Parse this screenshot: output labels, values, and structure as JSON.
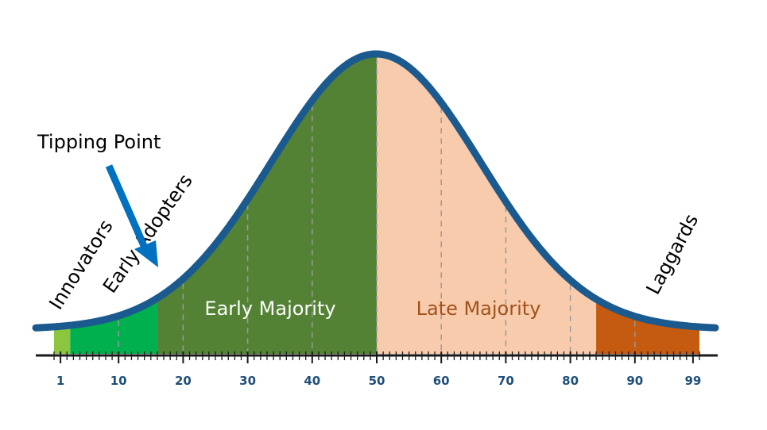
{
  "diagram": {
    "curve_color": "#1b5a8f",
    "segments": [
      {
        "key": "innovators",
        "label": "Innovators",
        "from": 0,
        "to": 2.5,
        "color": "#8cc63f",
        "label_color": "#000000"
      },
      {
        "key": "early_adopters",
        "label": "Early Adopters",
        "from": 2.5,
        "to": 16,
        "color": "#00b04f",
        "label_color": "#000000"
      },
      {
        "key": "early_majority",
        "label": "Early Majority",
        "from": 16,
        "to": 50,
        "color": "#548235",
        "label_color": "#ffffff"
      },
      {
        "key": "late_majority",
        "label": "Late Majority",
        "from": 50,
        "to": 84,
        "color": "#f8cbad",
        "label_color": "#a0521b"
      },
      {
        "key": "laggards",
        "label": "Laggards",
        "from": 84,
        "to": 100,
        "color": "#c55a11",
        "label_color": "#000000"
      }
    ],
    "axis": {
      "tick_labels": [
        "1",
        "10",
        "20",
        "30",
        "40",
        "50",
        "60",
        "70",
        "80",
        "90",
        "99"
      ],
      "tick_values": [
        1,
        10,
        20,
        30,
        40,
        50,
        60,
        70,
        80,
        90,
        99
      ],
      "label_color": "#1f4e79"
    },
    "tipping_point": {
      "label": "Tipping Point",
      "arrow_color": "#0070c0"
    }
  }
}
